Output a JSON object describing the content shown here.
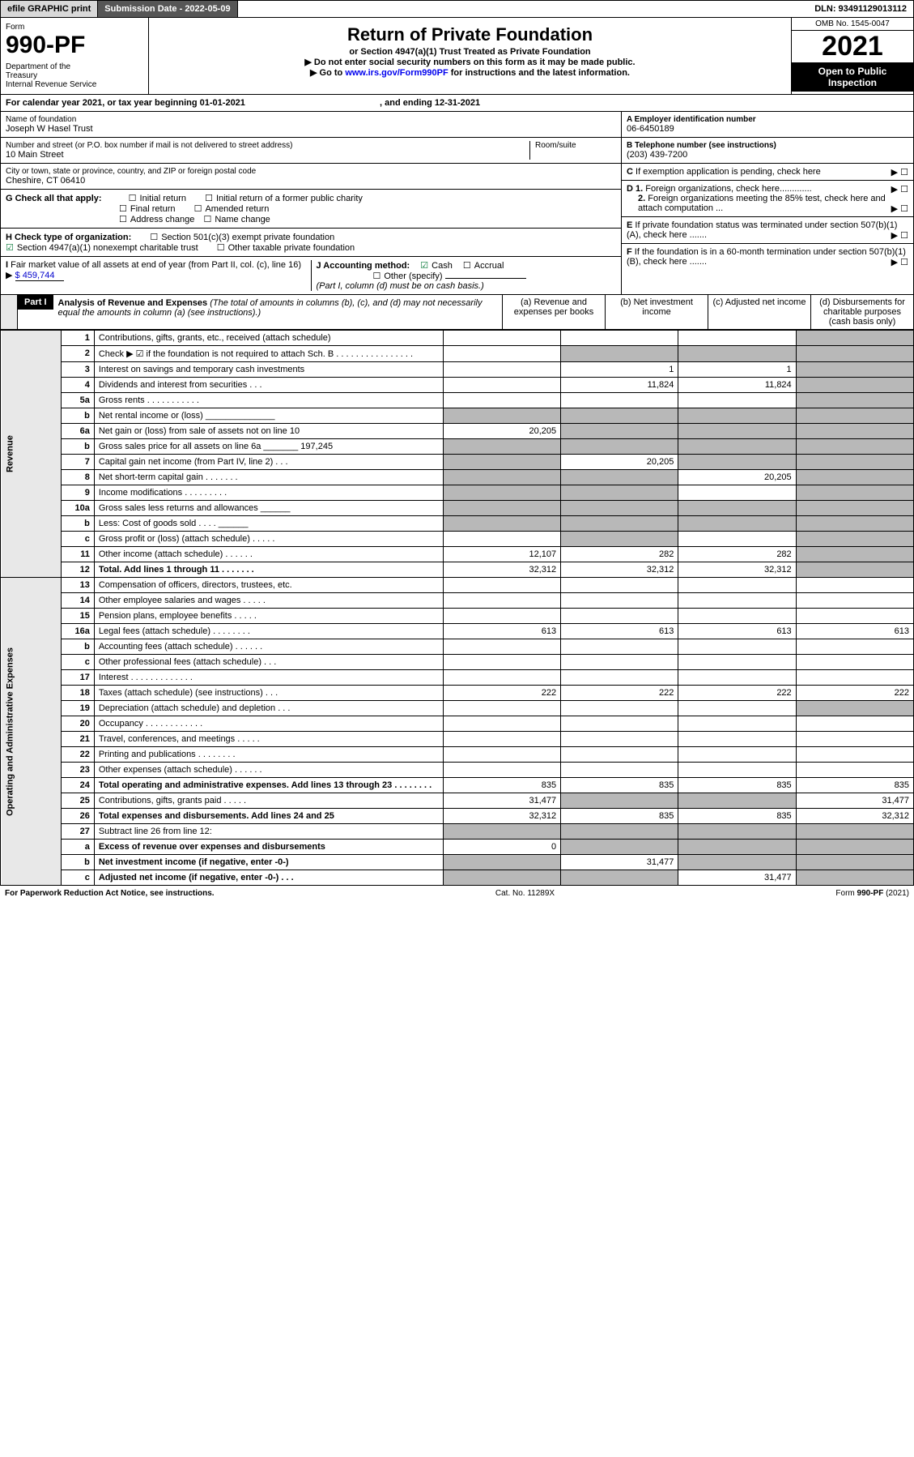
{
  "top": {
    "efile": "efile GRAPHIC print",
    "sublabel": "Submission Date - 2022-05-09",
    "dln": "DLN: 93491129013112"
  },
  "header": {
    "form_word": "Form",
    "form_num": "990-PF",
    "dept": "Department of the Treasury\nInternal Revenue Service",
    "title": "Return of Private Foundation",
    "subtitle": "or Section 4947(a)(1) Trust Treated as Private Foundation",
    "note1": "▶ Do not enter social security numbers on this form as it may be made public.",
    "note2": "▶ Go to www.irs.gov/Form990PF for instructions and the latest information.",
    "link": "www.irs.gov/Form990PF",
    "omb": "OMB No. 1545-0047",
    "year": "2021",
    "open": "Open to Public Inspection"
  },
  "cal": {
    "text": "For calendar year 2021, or tax year beginning 01-01-2021",
    "end": ", and ending 12-31-2021"
  },
  "info": {
    "nameLabel": "Name of foundation",
    "name": "Joseph W Hasel Trust",
    "addrLabel": "Number and street (or P.O. box number if mail is not delivered to street address)",
    "roomLabel": "Room/suite",
    "addr": "10 Main Street",
    "cityLabel": "City or town, state or province, country, and ZIP or foreign postal code",
    "city": "Cheshire, CT  06410",
    "gLabel": "G Check all that apply:",
    "g_opts": [
      "Initial return",
      "Final return",
      "Address change",
      "Initial return of a former public charity",
      "Amended return",
      "Name change"
    ],
    "hLabel": "H Check type of organization:",
    "h1": "Section 501(c)(3) exempt private foundation",
    "h2": "Section 4947(a)(1) nonexempt charitable trust",
    "h3": "Other taxable private foundation",
    "iLabel": "I Fair market value of all assets at end of year (from Part II, col. (c), line 16)",
    "iVal": "$  459,744",
    "jLabel": "J Accounting method:",
    "j_cash": "Cash",
    "j_accrual": "Accrual",
    "j_other": "Other (specify)",
    "jNote": "(Part I, column (d) must be on cash basis.)",
    "aLabel": "A Employer identification number",
    "aVal": "06-6450189",
    "bLabel": "B Telephone number (see instructions)",
    "bVal": "(203) 439-7200",
    "cLabel": "C If exemption application is pending, check here",
    "d1": "D 1. Foreign organizations, check here.............",
    "d2": "2. Foreign organizations meeting the 85% test, check here and attach computation ...",
    "eLabel": "E If private foundation status was terminated under section 507(b)(1)(A), check here .......",
    "fLabel": "F If the foundation is in a 60-month termination under section 507(b)(1)(B), check here ......."
  },
  "part1": {
    "label": "Part I",
    "title": "Analysis of Revenue and Expenses",
    "note": "(The total of amounts in columns (b), (c), and (d) may not necessarily equal the amounts in column (a) (see instructions).)",
    "cols": {
      "a": "(a)   Revenue and expenses per books",
      "b": "(b)   Net investment income",
      "c": "(c)   Adjusted net income",
      "d": "(d)   Disbursements for charitable purposes (cash basis only)"
    }
  },
  "sideR": "Revenue",
  "sideE": "Operating and Administrative Expenses",
  "rows": [
    {
      "n": "1",
      "d": "Contributions, gifts, grants, etc., received (attach schedule)",
      "a": "",
      "b": "",
      "c": "",
      "sd": true
    },
    {
      "n": "2",
      "d": "Check ▶ ☑ if the foundation is not required to attach Sch. B   .  .  .  .  .  .  .  .  .  .  .  .  .  .  .  .",
      "a": "",
      "b": "s",
      "c": "s",
      "sd": true
    },
    {
      "n": "3",
      "d": "Interest on savings and temporary cash investments",
      "a": "",
      "b": "1",
      "c": "1",
      "sd": true
    },
    {
      "n": "4",
      "d": "Dividends and interest from securities   .   .   .",
      "a": "",
      "b": "11,824",
      "c": "11,824",
      "sd": true
    },
    {
      "n": "5a",
      "d": "Gross rents   .   .   .   .   .   .   .   .   .   .   .",
      "a": "",
      "b": "",
      "c": "",
      "sd": true
    },
    {
      "n": "b",
      "d": "Net rental income or (loss)  ______________",
      "a": "s",
      "b": "s",
      "c": "s",
      "sd": true
    },
    {
      "n": "6a",
      "d": "Net gain or (loss) from sale of assets not on line 10",
      "a": "20,205",
      "b": "s",
      "c": "s",
      "sd": true
    },
    {
      "n": "b",
      "d": "Gross sales price for all assets on line 6a _______ 197,245",
      "a": "s",
      "b": "s",
      "c": "s",
      "sd": true
    },
    {
      "n": "7",
      "d": "Capital gain net income (from Part IV, line 2)   .   .   .",
      "a": "s",
      "b": "20,205",
      "c": "s",
      "sd": true
    },
    {
      "n": "8",
      "d": "Net short-term capital gain  .   .   .   .   .   .   .",
      "a": "s",
      "b": "s",
      "c": "20,205",
      "sd": true
    },
    {
      "n": "9",
      "d": "Income modifications  .   .   .   .   .   .   .   .   .",
      "a": "s",
      "b": "s",
      "c": "",
      "sd": true
    },
    {
      "n": "10a",
      "d": "Gross sales less returns and allowances  ______",
      "a": "s",
      "b": "s",
      "c": "s",
      "sd": true
    },
    {
      "n": "b",
      "d": "Less: Cost of goods sold   .   .   .   .   ______",
      "a": "s",
      "b": "s",
      "c": "s",
      "sd": true
    },
    {
      "n": "c",
      "d": "Gross profit or (loss) (attach schedule)   .   .   .   .   .",
      "a": "",
      "b": "s",
      "c": "",
      "sd": true
    },
    {
      "n": "11",
      "d": "Other income (attach schedule)   .   .   .   .   .   .",
      "a": "12,107",
      "b": "282",
      "c": "282",
      "sd": true
    },
    {
      "n": "12",
      "d": "Total. Add lines 1 through 11   .   .   .   .   .   .   .",
      "a": "32,312",
      "b": "32,312",
      "c": "32,312",
      "sd": true,
      "bold": true
    }
  ],
  "exp": [
    {
      "n": "13",
      "d": "Compensation of officers, directors, trustees, etc.",
      "a": "",
      "b": "",
      "c": "",
      "dd": ""
    },
    {
      "n": "14",
      "d": "Other employee salaries and wages   .   .   .   .   .",
      "a": "",
      "b": "",
      "c": "",
      "dd": ""
    },
    {
      "n": "15",
      "d": "Pension plans, employee benefits   .   .   .   .   .",
      "a": "",
      "b": "",
      "c": "",
      "dd": ""
    },
    {
      "n": "16a",
      "d": "Legal fees (attach schedule)  .   .   .   .   .   .   .   .",
      "a": "613",
      "b": "613",
      "c": "613",
      "dd": "613"
    },
    {
      "n": "b",
      "d": "Accounting fees (attach schedule)  .   .   .   .   .   .",
      "a": "",
      "b": "",
      "c": "",
      "dd": ""
    },
    {
      "n": "c",
      "d": "Other professional fees (attach schedule)   .   .   .",
      "a": "",
      "b": "",
      "c": "",
      "dd": ""
    },
    {
      "n": "17",
      "d": "Interest  .   .   .   .   .   .   .   .   .   .   .   .   .",
      "a": "",
      "b": "",
      "c": "",
      "dd": ""
    },
    {
      "n": "18",
      "d": "Taxes (attach schedule) (see instructions)   .   .   .",
      "a": "222",
      "b": "222",
      "c": "222",
      "dd": "222"
    },
    {
      "n": "19",
      "d": "Depreciation (attach schedule) and depletion   .   .   .",
      "a": "",
      "b": "",
      "c": "",
      "dd": "s"
    },
    {
      "n": "20",
      "d": "Occupancy  .   .   .   .   .   .   .   .   .   .   .   .",
      "a": "",
      "b": "",
      "c": "",
      "dd": ""
    },
    {
      "n": "21",
      "d": "Travel, conferences, and meetings  .   .   .   .   .",
      "a": "",
      "b": "",
      "c": "",
      "dd": ""
    },
    {
      "n": "22",
      "d": "Printing and publications  .   .   .   .   .   .   .   .",
      "a": "",
      "b": "",
      "c": "",
      "dd": ""
    },
    {
      "n": "23",
      "d": "Other expenses (attach schedule)  .   .   .   .   .   .",
      "a": "",
      "b": "",
      "c": "",
      "dd": ""
    },
    {
      "n": "24",
      "d": "Total operating and administrative expenses. Add lines 13 through 23   .   .   .   .   .   .   .   .",
      "a": "835",
      "b": "835",
      "c": "835",
      "dd": "835",
      "bold": true
    },
    {
      "n": "25",
      "d": "Contributions, gifts, grants paid   .   .   .   .   .",
      "a": "31,477",
      "b": "s",
      "c": "s",
      "dd": "31,477"
    },
    {
      "n": "26",
      "d": "Total expenses and disbursements. Add lines 24 and 25",
      "a": "32,312",
      "b": "835",
      "c": "835",
      "dd": "32,312",
      "bold": true
    },
    {
      "n": "27",
      "d": "Subtract line 26 from line 12:",
      "a": "s",
      "b": "s",
      "c": "s",
      "dd": "s"
    },
    {
      "n": "a",
      "d": "Excess of revenue over expenses and disbursements",
      "a": "0",
      "b": "s",
      "c": "s",
      "dd": "s",
      "bold": true
    },
    {
      "n": "b",
      "d": "Net investment income (if negative, enter -0-)",
      "a": "s",
      "b": "31,477",
      "c": "s",
      "dd": "s",
      "bold": true
    },
    {
      "n": "c",
      "d": "Adjusted net income (if negative, enter -0-)   .   .   .",
      "a": "s",
      "b": "s",
      "c": "31,477",
      "dd": "s",
      "bold": true
    }
  ],
  "footer": {
    "left": "For Paperwork Reduction Act Notice, see instructions.",
    "mid": "Cat. No. 11289X",
    "right": "Form 990-PF (2021)"
  }
}
